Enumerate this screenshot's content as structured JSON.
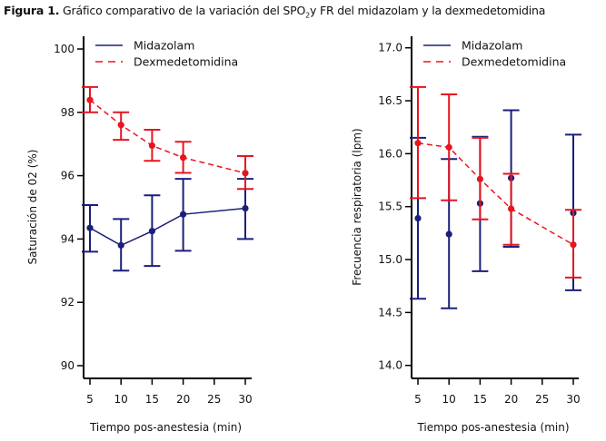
{
  "figure": {
    "title_prefix": "Figura 1.",
    "title_main": " Gráfico comparativo de la variación del  SPO",
    "title_sub": "2",
    "title_rest": "y FR del midazolam y la dexmedetomidina"
  },
  "colors": {
    "midazolam": "#1a1f7a",
    "dexmedetomidina": "#e8141e",
    "axis": "#000000"
  },
  "chart_data": [
    {
      "type": "line",
      "title": "",
      "xlabel": "Tiempo pos-anestesia (min)",
      "ylabel": "Saturación de 02 (%)",
      "xlim": [
        5,
        30
      ],
      "ylim": [
        90,
        100
      ],
      "xticks": [
        5,
        10,
        15,
        20,
        25,
        30
      ],
      "yticks": [
        90,
        92,
        94,
        96,
        98,
        100
      ],
      "ytick_labels": [
        "90",
        "92",
        "94",
        "96",
        "98",
        "100"
      ],
      "xtick_labels": [
        "5",
        "10",
        "15",
        "20",
        "25",
        "30"
      ],
      "grid": false,
      "legend": "top-left",
      "x": [
        5,
        10,
        15,
        20,
        30
      ],
      "series": [
        {
          "name": "Midazolam",
          "style": "solid",
          "connect": true,
          "values": [
            94.35,
            93.8,
            94.25,
            94.78,
            94.97
          ],
          "upper": [
            95.07,
            94.63,
            95.38,
            95.9,
            95.9
          ],
          "lower": [
            93.6,
            93.0,
            93.15,
            93.63,
            94.0
          ]
        },
        {
          "name": "Dexmedetomidina",
          "style": "dashed",
          "connect": true,
          "values": [
            98.39,
            97.6,
            96.95,
            96.57,
            96.08
          ],
          "upper": [
            98.8,
            98.0,
            97.45,
            97.07,
            96.62
          ],
          "lower": [
            98.0,
            97.13,
            96.47,
            96.09,
            95.58
          ]
        }
      ]
    },
    {
      "type": "line",
      "title": "",
      "xlabel": "Tiempo pos-anestesia (min)",
      "ylabel": "Frecuencia respiratoria (lpm)",
      "xlim": [
        5,
        30
      ],
      "ylim": [
        14.0,
        17.0
      ],
      "xticks": [
        5,
        10,
        15,
        20,
        25,
        30
      ],
      "yticks": [
        14.0,
        14.5,
        15.0,
        15.5,
        16.0,
        16.5,
        17.0
      ],
      "ytick_labels": [
        "14.0",
        "14.5",
        "15.0",
        "15.5",
        "16.0",
        "16.5",
        "17.0"
      ],
      "xtick_labels": [
        "5",
        "10",
        "15",
        "20",
        "25",
        "30"
      ],
      "grid": false,
      "legend": "top-left",
      "x": [
        5,
        10,
        15,
        20,
        30
      ],
      "series": [
        {
          "name": "Midazolam",
          "style": "solid",
          "connect": false,
          "values": [
            15.39,
            15.24,
            15.53,
            15.77,
            15.44
          ],
          "upper": [
            16.15,
            15.95,
            16.16,
            16.41,
            16.18
          ],
          "lower": [
            14.63,
            14.54,
            14.89,
            15.12,
            14.71
          ]
        },
        {
          "name": "Dexmedetomidina",
          "style": "dashed",
          "connect": true,
          "values": [
            16.1,
            16.06,
            15.76,
            15.48,
            15.14
          ],
          "upper": [
            16.63,
            16.56,
            16.15,
            15.81,
            15.47
          ],
          "lower": [
            15.58,
            15.56,
            15.38,
            15.14,
            14.83
          ]
        }
      ]
    }
  ]
}
